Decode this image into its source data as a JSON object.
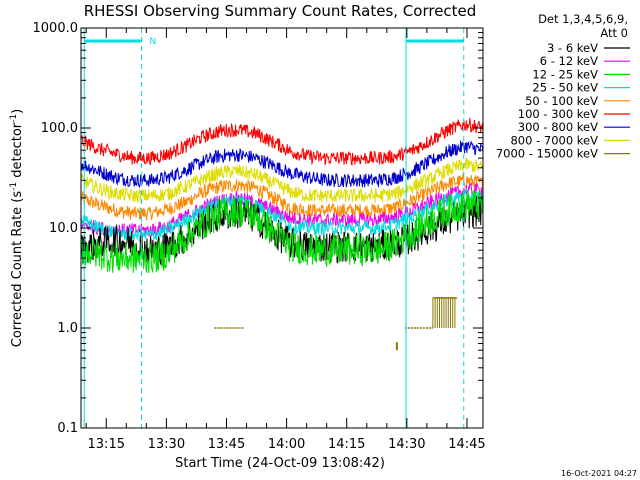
{
  "chart_data": {
    "type": "line",
    "title": "RHESSI Observing Summary Count Rates, Corrected",
    "xlabel": "Start Time (24-Oct-09 13:08:42)",
    "ylabel_main": "Corrected Count Rate (s",
    "ylabel_sup1": "-1",
    "ylabel_mid": " detector",
    "ylabel_sup2": "-1",
    "ylabel_end": ")",
    "ylog": true,
    "ylim": [
      0.1,
      1000
    ],
    "yticks": [
      {
        "v": 0.1,
        "label": "0.1"
      },
      {
        "v": 1,
        "label": "1.0"
      },
      {
        "v": 10,
        "label": "10.0"
      },
      {
        "v": 100,
        "label": "100.0"
      },
      {
        "v": 1000,
        "label": "1000.0"
      }
    ],
    "xlim_min": [
      788.7,
      889
    ],
    "xticks": [
      {
        "v": 795,
        "label": "13:15"
      },
      {
        "v": 810,
        "label": "13:30"
      },
      {
        "v": 825,
        "label": "13:45"
      },
      {
        "v": 840,
        "label": "14:00"
      },
      {
        "v": 855,
        "label": "14:15"
      },
      {
        "v": 870,
        "label": "14:30"
      },
      {
        "v": 885,
        "label": "14:45"
      }
    ],
    "legend_header": [
      "Det 1,3,4,5,6,9,",
      "Att 0"
    ],
    "legend_position": "top-right outside",
    "day_boundaries_min": [
      789.5,
      869.8
    ],
    "night_boundaries_min": [
      803.8,
      884.2
    ],
    "flag_label": "N",
    "flag_segments": [
      [
        789.5,
        803.8
      ],
      [
        869.8,
        884.2
      ]
    ],
    "series": [
      {
        "name": "3 - 6 keV",
        "color": "#000000",
        "values": [
          6,
          7,
          7.5,
          7,
          6,
          6.5,
          8,
          11,
          13.5,
          14,
          12.5,
          9,
          7,
          6.5,
          6.5,
          6.5,
          6.5,
          6.5,
          7,
          8,
          10,
          12,
          14,
          15
        ]
      },
      {
        "name": "6 - 12 keV",
        "color": "#ee00ee",
        "values": [
          11,
          10,
          9.5,
          9.5,
          9.5,
          10.5,
          13,
          16,
          19,
          20,
          18,
          15,
          12.5,
          12,
          12,
          12,
          12,
          12,
          13,
          15,
          18,
          21,
          24,
          24
        ]
      },
      {
        "name": "12 - 25 keV",
        "color": "#00dd00",
        "values": [
          6,
          5.5,
          5,
          5,
          5,
          5.5,
          8,
          11,
          14,
          15,
          13,
          9,
          6.5,
          6,
          6,
          6,
          6,
          6,
          7,
          9,
          12,
          15,
          17,
          17
        ]
      },
      {
        "name": "25 - 50 keV",
        "color": "#00dddd",
        "values": [
          12,
          10,
          9,
          8.5,
          8.5,
          9.5,
          12,
          15,
          18,
          19,
          17,
          13.5,
          10.5,
          10,
          10,
          10,
          10,
          10,
          11,
          13,
          16,
          19,
          21,
          20
        ]
      },
      {
        "name": "50 - 100 keV",
        "color": "#ff8800",
        "values": [
          20,
          17,
          15,
          14,
          14,
          15.5,
          18,
          23,
          26,
          27,
          25,
          20,
          16,
          15,
          15,
          15,
          15,
          15,
          16,
          19,
          23,
          28,
          30,
          28
        ]
      },
      {
        "name": "100 - 300 keV",
        "color": "#ff0000",
        "values": [
          75,
          62,
          55,
          50,
          50,
          55,
          66,
          82,
          94,
          96,
          88,
          72,
          58,
          52,
          50,
          50,
          50,
          50,
          52,
          60,
          75,
          95,
          110,
          100
        ]
      },
      {
        "name": "300 - 800 keV",
        "color": "#0000cc",
        "values": [
          44,
          37,
          32,
          30,
          30,
          32,
          38,
          46,
          53,
          54,
          50,
          42,
          35,
          32,
          30,
          30,
          30,
          30,
          32,
          37,
          46,
          58,
          66,
          60
        ]
      },
      {
        "name": "800 - 7000 keV",
        "color": "#dddd00",
        "values": [
          30,
          25,
          22,
          21,
          21,
          22,
          26,
          31,
          36,
          37,
          34,
          28,
          23,
          21,
          21,
          21,
          21,
          21,
          22,
          26,
          31,
          38,
          43,
          40
        ]
      },
      {
        "name": "7000 - 15000 keV",
        "color": "#887700",
        "values": []
      }
    ],
    "olive_segments": [
      {
        "x": [
          822.0,
          829.5
        ],
        "y": 1.0
      },
      {
        "x": [
          869.5,
          876.5
        ],
        "y": 1.0
      },
      {
        "x": [
          876.5,
          882.5
        ],
        "y": 2.0
      }
    ],
    "olive_spike": {
      "x": 867.5,
      "y": [
        0.72,
        0.6
      ]
    },
    "timestamp": "16-Oct-2021 04:27"
  }
}
